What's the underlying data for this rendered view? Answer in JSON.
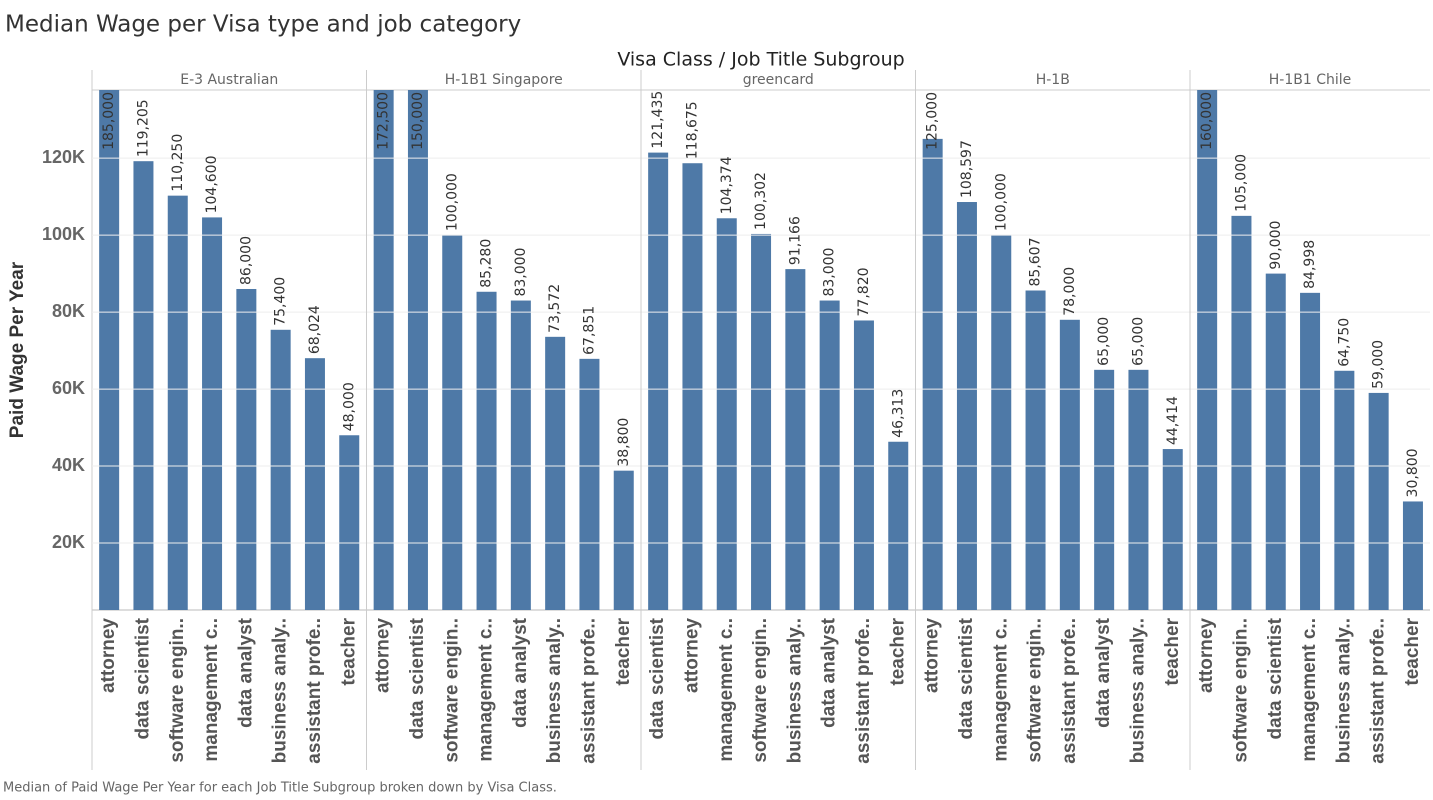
{
  "chart_data": {
    "type": "bar",
    "title": "Median Wage per Visa type and job category",
    "x_title": "Visa Class  /  Job Title Subgroup",
    "ylabel": "Paid Wage Per Year",
    "caption": "Median of Paid Wage Per Year for each Job Title Subgroup broken down by Visa Class.",
    "color": "#4e79a7",
    "grid": true,
    "ylim": [
      2600,
      137700
    ],
    "yticks": [
      {
        "value": 20000,
        "label": "20K"
      },
      {
        "value": 40000,
        "label": "40K"
      },
      {
        "value": 60000,
        "label": "60K"
      },
      {
        "value": 80000,
        "label": "80K"
      },
      {
        "value": 100000,
        "label": "100K"
      },
      {
        "value": 120000,
        "label": "120K"
      }
    ],
    "panels": [
      {
        "name": "E-3 Australian",
        "categories": [
          "attorney",
          "data scientist",
          "software engin..",
          "management c..",
          "data analyst",
          "business analy..",
          "assistant profe..",
          "teacher"
        ],
        "values": [
          185000,
          119205,
          110250,
          104600,
          86000,
          75400,
          68024,
          48000
        ],
        "value_labels": [
          "185,000",
          "119,205",
          "110,250",
          "104,600",
          "86,000",
          "75,400",
          "68,024",
          "48,000"
        ]
      },
      {
        "name": "H-1B1 Singapore",
        "categories": [
          "attorney",
          "data scientist",
          "software engin..",
          "management c..",
          "data analyst",
          "business analy..",
          "assistant profe..",
          "teacher"
        ],
        "values": [
          172500,
          150000,
          100000,
          85280,
          83000,
          73572,
          67851,
          38800
        ],
        "value_labels": [
          "172,500",
          "150,000",
          "100,000",
          "85,280",
          "83,000",
          "73,572",
          "67,851",
          "38,800"
        ]
      },
      {
        "name": "greencard",
        "categories": [
          "data scientist",
          "attorney",
          "management c..",
          "software engin..",
          "business analy..",
          "data analyst",
          "assistant profe..",
          "teacher"
        ],
        "values": [
          121435,
          118675,
          104374,
          100302,
          91166,
          83000,
          77820,
          46313
        ],
        "value_labels": [
          "121,435",
          "118,675",
          "104,374",
          "100,302",
          "91,166",
          "83,000",
          "77,820",
          "46,313"
        ]
      },
      {
        "name": "H-1B",
        "categories": [
          "attorney",
          "data scientist",
          "management c..",
          "software engin..",
          "assistant profe..",
          "data analyst",
          "business analy..",
          "teacher"
        ],
        "values": [
          125000,
          108597,
          100000,
          85607,
          78000,
          65000,
          65000,
          44414
        ],
        "value_labels": [
          "125,000",
          "108,597",
          "100,000",
          "85,607",
          "78,000",
          "65,000",
          "65,000",
          "44,414"
        ]
      },
      {
        "name": "H-1B1 Chile",
        "categories": [
          "attorney",
          "software engin..",
          "data scientist",
          "management c..",
          "business analy..",
          "assistant profe..",
          "teacher"
        ],
        "values": [
          160000,
          105000,
          90000,
          84998,
          64750,
          59000,
          30800
        ],
        "value_labels": [
          "160,000",
          "105,000",
          "90,000",
          "84,998",
          "64,750",
          "59,000",
          "30,800"
        ]
      }
    ]
  }
}
